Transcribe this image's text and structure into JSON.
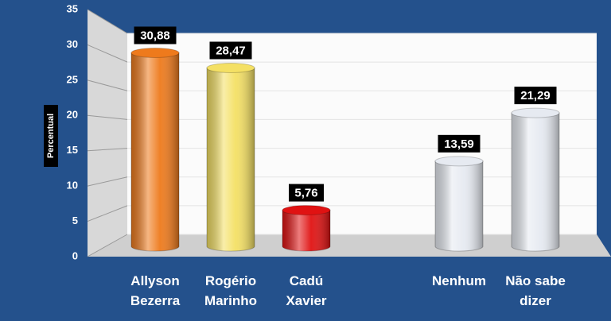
{
  "chart_data": {
    "type": "bar",
    "y_label": "Percentual",
    "categories": [
      "Allyson\nBezerra",
      "Rogério\nMarinho",
      "Cadú\nXavier",
      null,
      "Nenhum",
      "Não sabe\ndizer"
    ],
    "values": [
      30.88,
      28.47,
      5.76,
      null,
      13.59,
      21.29
    ],
    "value_labels": [
      "30,88",
      "28,47",
      "5,76",
      null,
      "13,59",
      "21,29"
    ],
    "colors": [
      "#ee7a1c",
      "#f4e064",
      "#e01212",
      null,
      "#e6eaf1",
      "#e6eaf1"
    ],
    "ylim": [
      0,
      35
    ],
    "yticks": [
      0,
      5,
      10,
      15,
      20,
      25,
      30,
      35
    ],
    "grid": true
  }
}
